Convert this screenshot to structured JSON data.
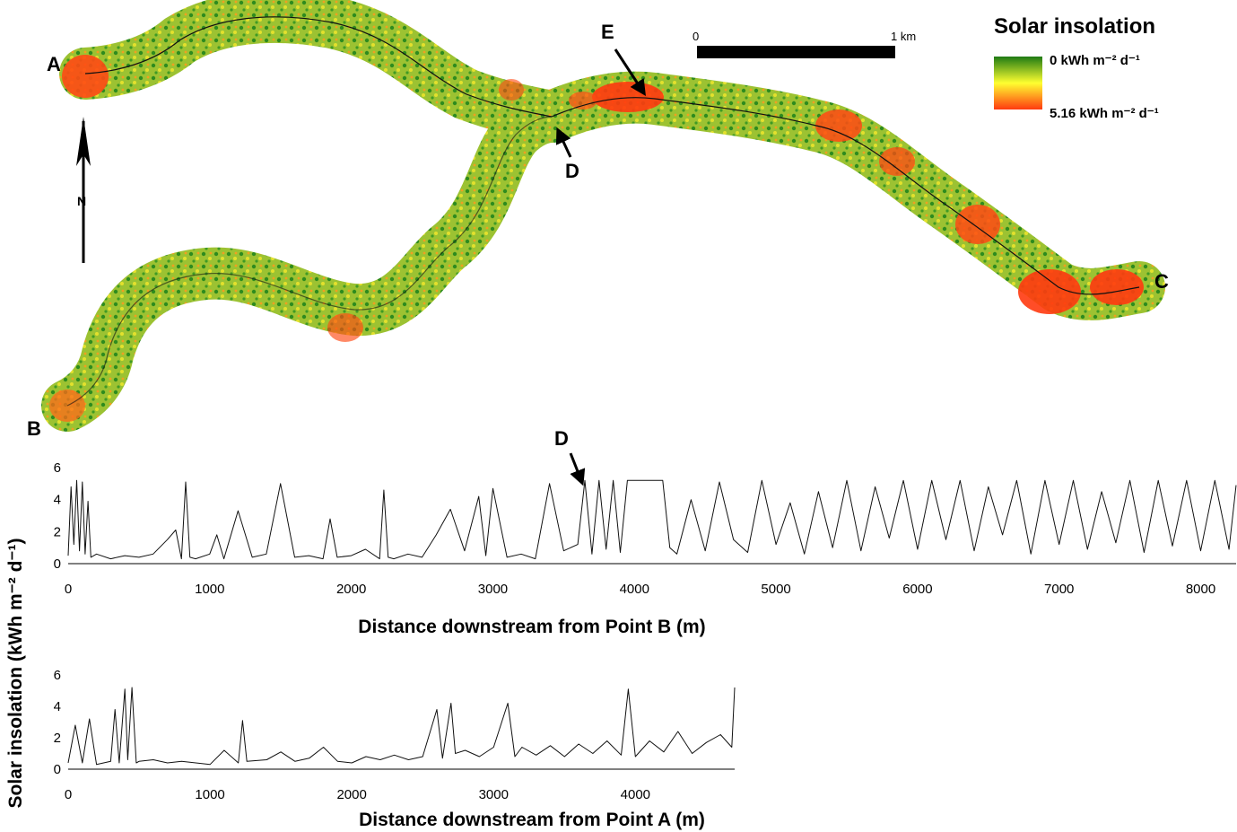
{
  "map": {
    "legend": {
      "title": "Solar insolation",
      "low_label": "0 kWh m⁻² d⁻¹",
      "high_label": "5.16 kWh m⁻² d⁻¹",
      "colors": [
        "#1e7a14",
        "#ffff30",
        "#ff3a10"
      ]
    },
    "scale_bar": {
      "start_label": "0",
      "end_label": "1 km"
    },
    "north_label": "N",
    "point_labels": {
      "a": "A",
      "b": "B",
      "c": "C",
      "d": "D",
      "e": "E"
    },
    "colors": {
      "low": "#2e8b1e",
      "mid": "#d7e02a",
      "high": "#ff4a14",
      "channel": "#111111"
    }
  },
  "shared_ylabel": "Solar insolation  (kWh m⁻² d⁻¹)",
  "chart_data": [
    {
      "type": "line",
      "xlabel": "Distance downstream from Point B (m)",
      "annotation": "D",
      "annotation_x": 3650,
      "xlim": [
        0,
        8250
      ],
      "ylim": [
        0,
        6
      ],
      "xticks": [
        0,
        1000,
        2000,
        3000,
        4000,
        5000,
        6000,
        7000,
        8000
      ],
      "yticks": [
        0,
        2,
        4,
        6
      ],
      "series": [
        {
          "x": [
            0,
            20,
            40,
            60,
            80,
            100,
            120,
            140,
            160,
            200,
            300,
            400,
            500,
            600,
            700,
            760,
            800,
            830,
            860,
            900,
            1000,
            1050,
            1100,
            1200,
            1300,
            1400,
            1500,
            1600,
            1700,
            1800,
            1850,
            1900,
            2000,
            2100,
            2200,
            2230,
            2260,
            2300,
            2400,
            2500,
            2600,
            2700,
            2800,
            2900,
            2950,
            3000,
            3100,
            3200,
            3300,
            3400,
            3500,
            3600,
            3650,
            3700,
            3750,
            3800,
            3850,
            3900,
            3950,
            4000,
            4100,
            4150,
            4200,
            4250,
            4300,
            4400,
            4500,
            4600,
            4700,
            4800,
            4900,
            5000,
            5100,
            5200,
            5300,
            5400,
            5500,
            5600,
            5700,
            5800,
            5900,
            6000,
            6100,
            6200,
            6300,
            6400,
            6500,
            6600,
            6700,
            6800,
            6900,
            7000,
            7100,
            7200,
            7300,
            7400,
            7500,
            7600,
            7700,
            7800,
            7900,
            8000,
            8100,
            8200,
            8250
          ],
          "y": [
            0.5,
            4.8,
            1.2,
            5.2,
            0.8,
            5.1,
            0.6,
            3.9,
            0.4,
            0.6,
            0.3,
            0.5,
            0.4,
            0.6,
            1.5,
            2.1,
            0.3,
            5.1,
            0.4,
            0.3,
            0.6,
            1.8,
            0.3,
            3.3,
            0.4,
            0.6,
            5.0,
            0.4,
            0.5,
            0.3,
            2.8,
            0.4,
            0.5,
            0.9,
            0.3,
            4.6,
            0.4,
            0.3,
            0.6,
            0.4,
            1.8,
            3.4,
            0.8,
            4.2,
            0.5,
            4.7,
            0.4,
            0.6,
            0.3,
            5.0,
            0.8,
            1.2,
            5.2,
            0.6,
            5.2,
            0.9,
            5.2,
            0.7,
            5.2,
            5.2,
            5.2,
            5.2,
            5.2,
            1.0,
            0.6,
            4.0,
            0.8,
            5.1,
            1.5,
            0.7,
            5.2,
            1.2,
            3.8,
            0.6,
            4.5,
            1.0,
            5.2,
            0.8,
            4.8,
            1.6,
            5.2,
            0.9,
            5.2,
            1.5,
            5.2,
            0.8,
            4.8,
            1.8,
            5.2,
            0.6,
            5.2,
            1.2,
            5.2,
            0.9,
            4.5,
            1.3,
            5.2,
            0.7,
            5.2,
            1.1,
            5.2,
            0.8,
            5.2,
            0.9,
            4.9
          ]
        }
      ]
    },
    {
      "type": "line",
      "xlabel": "Distance downstream from Point A (m)",
      "xlim": [
        0,
        4700
      ],
      "ylim": [
        0,
        6
      ],
      "xticks": [
        0,
        1000,
        2000,
        3000,
        4000
      ],
      "yticks": [
        0,
        2,
        4,
        6
      ],
      "series": [
        {
          "x": [
            0,
            50,
            100,
            150,
            200,
            300,
            330,
            360,
            400,
            420,
            450,
            480,
            500,
            600,
            700,
            800,
            900,
            1000,
            1100,
            1200,
            1230,
            1260,
            1400,
            1500,
            1600,
            1700,
            1800,
            1900,
            2000,
            2100,
            2200,
            2300,
            2400,
            2500,
            2600,
            2640,
            2700,
            2730,
            2800,
            2900,
            3000,
            3100,
            3150,
            3200,
            3300,
            3400,
            3500,
            3600,
            3700,
            3800,
            3900,
            3950,
            4000,
            4100,
            4200,
            4300,
            4400,
            4500,
            4600,
            4680,
            4700
          ],
          "y": [
            0.4,
            2.8,
            0.4,
            3.2,
            0.3,
            0.5,
            3.8,
            0.4,
            5.1,
            0.6,
            5.2,
            0.4,
            0.5,
            0.6,
            0.4,
            0.5,
            0.4,
            0.3,
            1.2,
            0.4,
            3.1,
            0.5,
            0.6,
            1.1,
            0.5,
            0.7,
            1.4,
            0.5,
            0.4,
            0.8,
            0.6,
            0.9,
            0.6,
            0.8,
            3.8,
            0.7,
            4.2,
            1.0,
            1.2,
            0.8,
            1.4,
            4.2,
            0.8,
            1.4,
            0.9,
            1.5,
            0.8,
            1.6,
            1.0,
            1.8,
            0.9,
            5.1,
            0.8,
            1.8,
            1.1,
            2.4,
            1.0,
            1.7,
            2.2,
            1.4,
            5.2
          ]
        }
      ]
    }
  ]
}
